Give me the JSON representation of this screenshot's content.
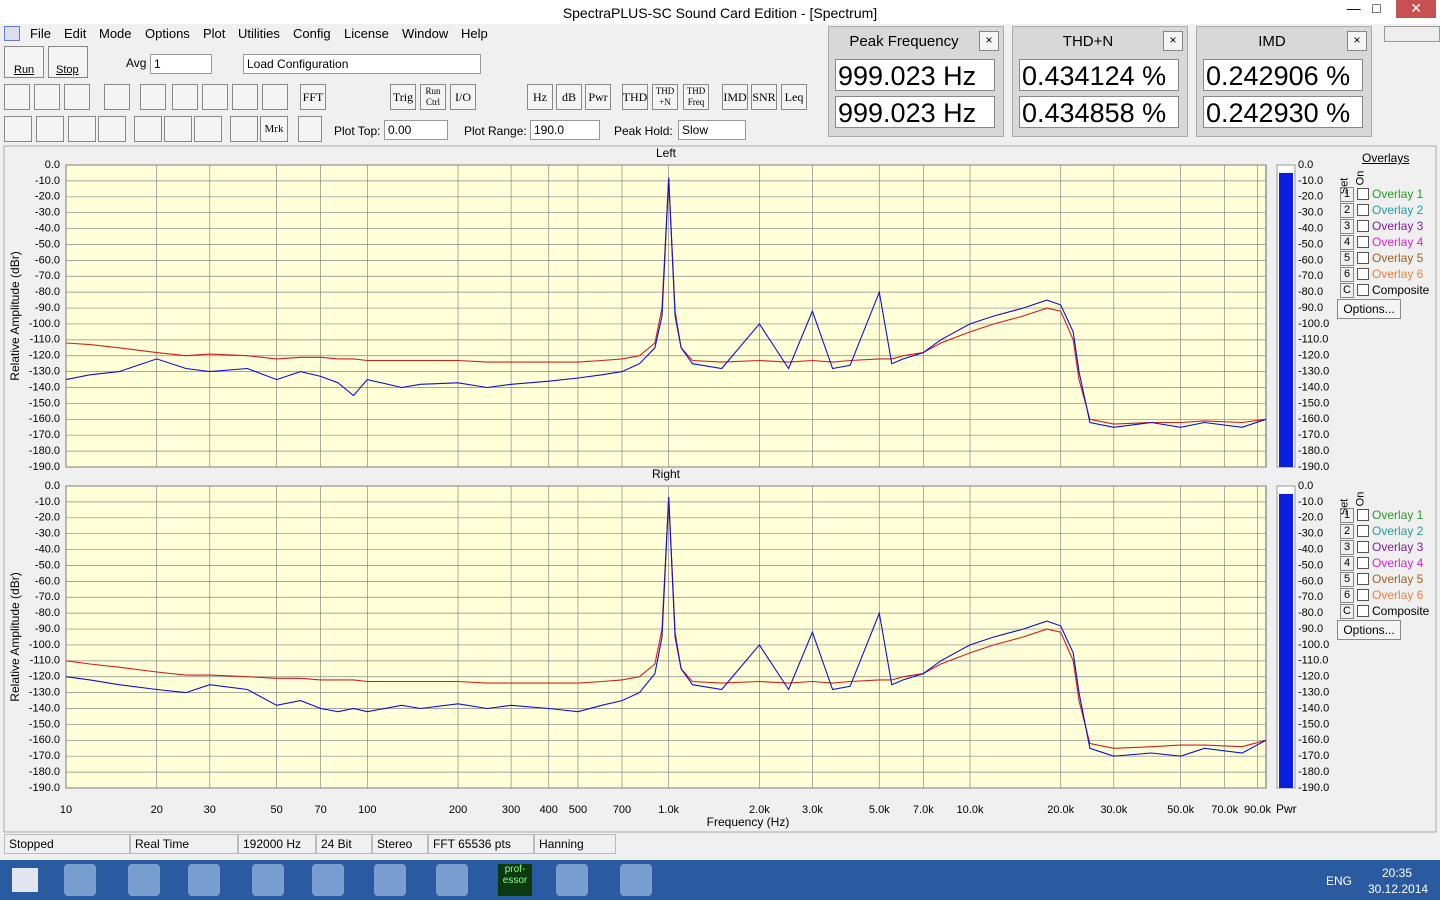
{
  "window": {
    "title": "SpectraPLUS-SC Sound Card Edition - [Spectrum]"
  },
  "menu": [
    "File",
    "Edit",
    "Mode",
    "Options",
    "Plot",
    "Utilities",
    "Config",
    "License",
    "Window",
    "Help"
  ],
  "toolbar": {
    "run": "Run",
    "stop": "Stop",
    "avg_label": "Avg",
    "avg_value": "1",
    "config": "Load Configuration",
    "buttons": [
      "FFT",
      "Trig",
      "Run Ctrl",
      "I/O",
      "Hz",
      "dB",
      "Pwr",
      "THD",
      "THD +N",
      "THD Freq",
      "IMD",
      "SNR",
      "Leq"
    ],
    "marker": "Mrk",
    "plot_top_label": "Plot Top:",
    "plot_top": "0.00",
    "plot_range_label": "Plot Range:",
    "plot_range": "190.0",
    "peak_hold_label": "Peak Hold:",
    "peak_hold": "Slow"
  },
  "meters": [
    {
      "title": "Peak Frequency",
      "readings": [
        "999.023 Hz",
        "999.023 Hz"
      ]
    },
    {
      "title": "THD+N",
      "readings": [
        "0.434124 %",
        "0.434858 %"
      ]
    },
    {
      "title": "IMD",
      "readings": [
        "0.242906 %",
        "0.242930 %"
      ]
    }
  ],
  "chart_data": [
    {
      "type": "line",
      "title": "Left",
      "y_label": "Relative Amplitude (dBr)",
      "x_log": true,
      "grid": true,
      "xlim": [
        10,
        96000
      ],
      "xticks": [
        10,
        20,
        30,
        50,
        70,
        100,
        200,
        300,
        400,
        500,
        700,
        1000,
        2000,
        3000,
        5000,
        7000,
        10000,
        20000,
        30000,
        50000,
        70000,
        90000
      ],
      "ylim": [
        -190,
        0
      ],
      "yticks": [
        {
          "value": 0,
          "label": "0.0"
        },
        {
          "value": -10,
          "label": "-10.0"
        },
        {
          "value": -20,
          "label": "-20.0"
        },
        {
          "value": -30,
          "label": "-30.0"
        },
        {
          "value": -40,
          "label": "-40.0"
        },
        {
          "value": -50,
          "label": "-50.0"
        },
        {
          "value": -60,
          "label": "-60.0"
        },
        {
          "value": -70,
          "label": "-70.0"
        },
        {
          "value": -80,
          "label": "-80.0"
        },
        {
          "value": -90,
          "label": "-90.0"
        },
        {
          "value": -100,
          "label": "-100.0"
        },
        {
          "value": -110,
          "label": "-110.0"
        },
        {
          "value": -120,
          "label": "-120.0"
        },
        {
          "value": -130,
          "label": "-130.0"
        },
        {
          "value": -140,
          "label": "-140.0"
        },
        {
          "value": -150,
          "label": "-150.0"
        },
        {
          "value": -160,
          "label": "-160.0"
        },
        {
          "value": -170,
          "label": "-170.0"
        },
        {
          "value": -180,
          "label": "-180.0"
        },
        {
          "value": -190,
          "label": "-190.0"
        }
      ],
      "x": [
        10,
        12,
        15,
        20,
        25,
        30,
        40,
        50,
        60,
        70,
        80,
        90,
        100,
        130,
        150,
        200,
        250,
        300,
        400,
        500,
        600,
        700,
        800,
        900,
        950,
        1000,
        1050,
        1100,
        1200,
        1500,
        2000,
        2500,
        3000,
        3500,
        4000,
        5000,
        5500,
        6000,
        7000,
        8000,
        10000,
        12000,
        15000,
        18000,
        20000,
        22000,
        23000,
        25000,
        30000,
        40000,
        50000,
        60000,
        80000,
        96000
      ],
      "series": [
        {
          "color": "#d02020",
          "values": [
            -112,
            -113,
            -115,
            -118,
            -120,
            -119,
            -120,
            -122,
            -121,
            -121,
            -122,
            -122,
            -123,
            -123,
            -123,
            -123,
            -124,
            -124,
            -124,
            -124,
            -123,
            -122,
            -120,
            -112,
            -90,
            -8,
            -92,
            -115,
            -123,
            -124,
            -123,
            -124,
            -123,
            -124,
            -123,
            -122,
            -122,
            -120,
            -118,
            -112,
            -105,
            -100,
            -95,
            -90,
            -92,
            -110,
            -135,
            -160,
            -163,
            -162,
            -162,
            -161,
            -162,
            -160
          ]
        },
        {
          "color": "#1010d0",
          "values": [
            -135,
            -132,
            -130,
            -122,
            -128,
            -130,
            -128,
            -135,
            -130,
            -133,
            -137,
            -145,
            -135,
            -140,
            -138,
            -137,
            -140,
            -138,
            -136,
            -134,
            -132,
            -130,
            -125,
            -115,
            -95,
            -8,
            -95,
            -115,
            -125,
            -128,
            -100,
            -128,
            -92,
            -128,
            -126,
            -80,
            -125,
            -122,
            -118,
            -110,
            -100,
            -95,
            -90,
            -85,
            -88,
            -105,
            -130,
            -162,
            -165,
            -162,
            -165,
            -162,
            -165,
            -160
          ]
        }
      ]
    },
    {
      "type": "line",
      "title": "Right",
      "y_label": "Relative Amplitude (dBr)",
      "x_label": "Frequency (Hz)",
      "x_log": true,
      "grid": true,
      "xlim": [
        10,
        96000
      ],
      "xticks": [
        10,
        20,
        30,
        50,
        70,
        100,
        200,
        300,
        400,
        500,
        700,
        {
          "value": 1000,
          "label": "1.0k"
        },
        {
          "value": 2000,
          "label": "2.0k"
        },
        {
          "value": 3000,
          "label": "3.0k"
        },
        {
          "value": 5000,
          "label": "5.0k"
        },
        {
          "value": 7000,
          "label": "7.0k"
        },
        {
          "value": 10000,
          "label": "10.0k"
        },
        {
          "value": 20000,
          "label": "20.0k"
        },
        {
          "value": 30000,
          "label": "30.0k"
        },
        {
          "value": 50000,
          "label": "50.0k"
        },
        {
          "value": 70000,
          "label": "70.0k"
        },
        {
          "value": 90000,
          "label": "90.0k"
        }
      ],
      "ylim": [
        -190,
        0
      ],
      "yticks": [
        {
          "value": 0,
          "label": "0.0"
        },
        {
          "value": -10,
          "label": "-10.0"
        },
        {
          "value": -20,
          "label": "-20.0"
        },
        {
          "value": -30,
          "label": "-30.0"
        },
        {
          "value": -40,
          "label": "-40.0"
        },
        {
          "value": -50,
          "label": "-50.0"
        },
        {
          "value": -60,
          "label": "-60.0"
        },
        {
          "value": -70,
          "label": "-70.0"
        },
        {
          "value": -80,
          "label": "-80.0"
        },
        {
          "value": -90,
          "label": "-90.0"
        },
        {
          "value": -100,
          "label": "-100.0"
        },
        {
          "value": -110,
          "label": "-110.0"
        },
        {
          "value": -120,
          "label": "-120.0"
        },
        {
          "value": -130,
          "label": "-130.0"
        },
        {
          "value": -140,
          "label": "-140.0"
        },
        {
          "value": -150,
          "label": "-150.0"
        },
        {
          "value": -160,
          "label": "-160.0"
        },
        {
          "value": -170,
          "label": "-170.0"
        },
        {
          "value": -180,
          "label": "-180.0"
        },
        {
          "value": -190,
          "label": "-190.0"
        }
      ],
      "x": [
        10,
        12,
        15,
        20,
        25,
        30,
        40,
        50,
        60,
        70,
        80,
        90,
        100,
        130,
        150,
        200,
        250,
        300,
        400,
        500,
        600,
        700,
        800,
        900,
        950,
        1000,
        1050,
        1100,
        1200,
        1500,
        2000,
        2500,
        3000,
        3500,
        4000,
        5000,
        5500,
        6000,
        7000,
        8000,
        10000,
        12000,
        15000,
        18000,
        20000,
        22000,
        23000,
        25000,
        30000,
        40000,
        50000,
        60000,
        80000,
        96000
      ],
      "series": [
        {
          "color": "#d02020",
          "values": [
            -110,
            -112,
            -114,
            -117,
            -119,
            -119,
            -120,
            -121,
            -121,
            -122,
            -122,
            -122,
            -123,
            -123,
            -123,
            -123,
            -124,
            -124,
            -124,
            -124,
            -123,
            -122,
            -120,
            -112,
            -90,
            -7,
            -92,
            -115,
            -123,
            -124,
            -123,
            -124,
            -123,
            -124,
            -123,
            -122,
            -122,
            -120,
            -118,
            -112,
            -105,
            -100,
            -95,
            -90,
            -92,
            -110,
            -135,
            -162,
            -165,
            -164,
            -163,
            -163,
            -164,
            -160
          ]
        },
        {
          "color": "#1010d0",
          "values": [
            -120,
            -122,
            -125,
            -128,
            -130,
            -125,
            -128,
            -138,
            -135,
            -140,
            -142,
            -140,
            -142,
            -138,
            -140,
            -137,
            -140,
            -138,
            -140,
            -142,
            -138,
            -135,
            -130,
            -118,
            -95,
            -7,
            -95,
            -115,
            -125,
            -128,
            -100,
            -128,
            -92,
            -128,
            -126,
            -80,
            -125,
            -122,
            -118,
            -110,
            -100,
            -95,
            -90,
            -85,
            -88,
            -105,
            -130,
            -165,
            -170,
            -168,
            -170,
            -165,
            -168,
            -160
          ]
        }
      ]
    }
  ],
  "level_meters": {
    "label": "Pwr",
    "lim": [
      -190,
      0
    ],
    "values": [
      -5,
      -5
    ],
    "ticks": [
      {
        "value": 0,
        "label": "0.0"
      },
      {
        "value": -10,
        "label": "-10.0"
      },
      {
        "value": -20,
        "label": "-20.0"
      },
      {
        "value": -30,
        "label": "-30.0"
      },
      {
        "value": -40,
        "label": "-40.0"
      },
      {
        "value": -50,
        "label": "-50.0"
      },
      {
        "value": -60,
        "label": "-60.0"
      },
      {
        "value": -70,
        "label": "-70.0"
      },
      {
        "value": -80,
        "label": "-80.0"
      },
      {
        "value": -90,
        "label": "-90.0"
      },
      {
        "value": -100,
        "label": "-100.0"
      },
      {
        "value": -110,
        "label": "-110.0"
      },
      {
        "value": -120,
        "label": "-120.0"
      },
      {
        "value": -130,
        "label": "-130.0"
      },
      {
        "value": -140,
        "label": "-140.0"
      },
      {
        "value": -150,
        "label": "-150.0"
      },
      {
        "value": -160,
        "label": "-160.0"
      },
      {
        "value": -170,
        "label": "-170.0"
      },
      {
        "value": -180,
        "label": "-180.0"
      },
      {
        "value": -190,
        "label": "-190.0"
      }
    ]
  },
  "overlays": {
    "title": "Overlays",
    "set_label": "Set",
    "on_label": "On",
    "options": "Options...",
    "items": [
      {
        "key": "1",
        "name": "Overlay 1",
        "color": "#20a020"
      },
      {
        "key": "2",
        "name": "Overlay 2",
        "color": "#20a0a0"
      },
      {
        "key": "3",
        "name": "Overlay 3",
        "color": "#8020a0"
      },
      {
        "key": "4",
        "name": "Overlay 4",
        "color": "#e020e0"
      },
      {
        "key": "5",
        "name": "Overlay 5",
        "color": "#a06020"
      },
      {
        "key": "6",
        "name": "Overlay 6",
        "color": "#f08040"
      },
      {
        "key": "C",
        "name": "Composite",
        "color": "#000000"
      }
    ]
  },
  "status": [
    "Stopped",
    "Real Time",
    "192000 Hz",
    "24 Bit",
    "Stereo",
    "FFT 65536 pts",
    "Hanning"
  ],
  "taskbar": {
    "app_label": "prof- essor",
    "language": "ENG",
    "time": "20:35",
    "date": "30.12.2014"
  }
}
